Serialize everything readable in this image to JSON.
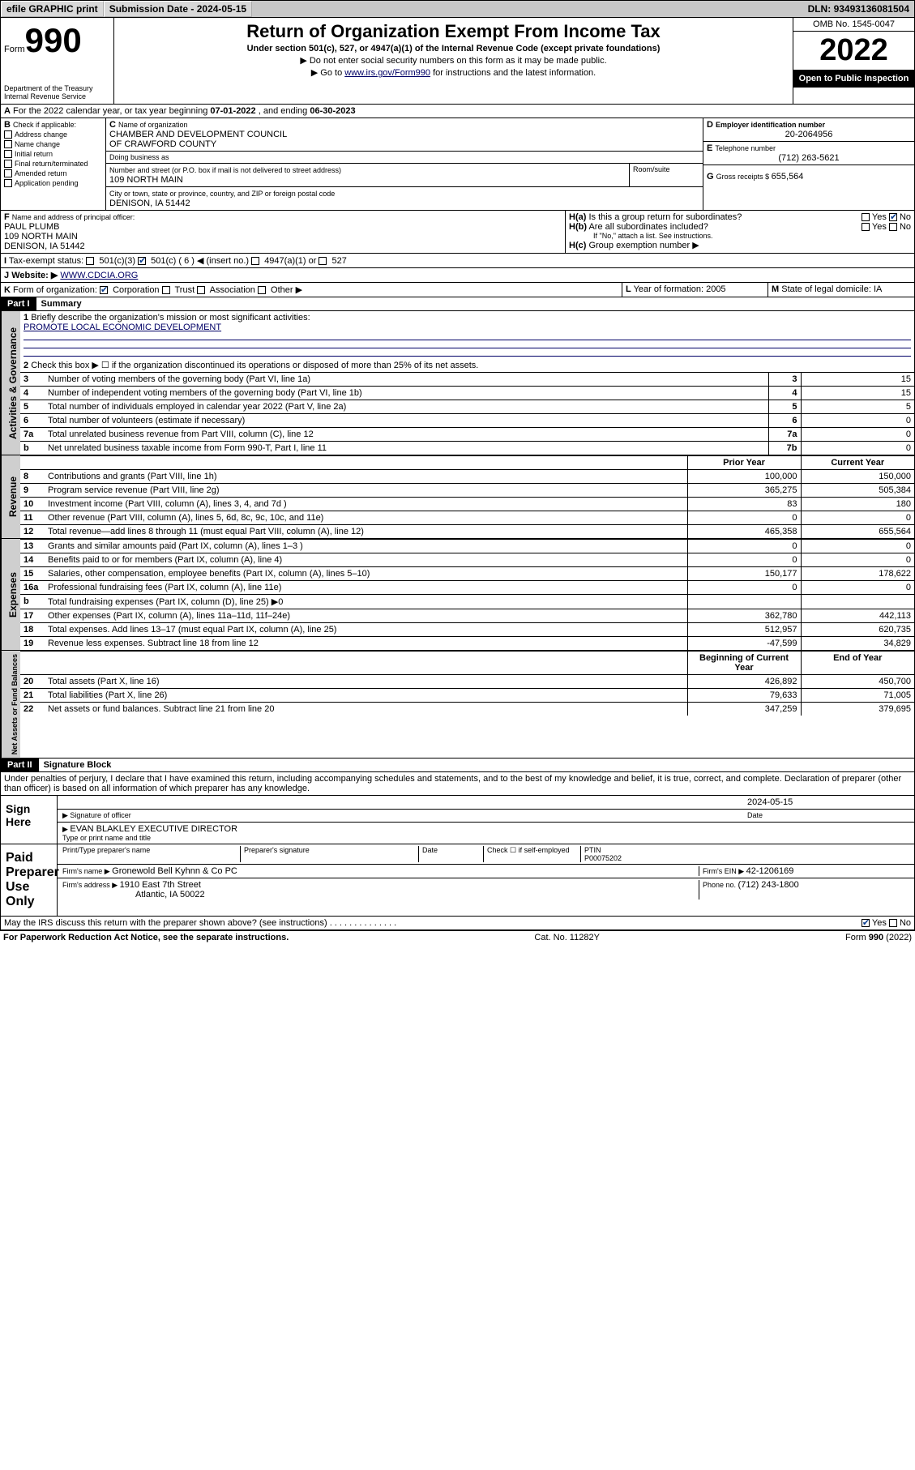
{
  "topbar": {
    "efile": "efile GRAPHIC print",
    "submission_label": "Submission Date - ",
    "submission_date": "2024-05-15",
    "dln_label": "DLN: ",
    "dln": "93493136081504"
  },
  "header": {
    "form_label": "Form",
    "form_no": "990",
    "dept": "Department of the Treasury\nInternal Revenue Service",
    "title": "Return of Organization Exempt From Income Tax",
    "subtitle": "Under section 501(c), 527, or 4947(a)(1) of the Internal Revenue Code (except private foundations)",
    "note1": "▶ Do not enter social security numbers on this form as it may be made public.",
    "note2_pre": "▶ Go to ",
    "note2_link": "www.irs.gov/Form990",
    "note2_post": " for instructions and the latest information.",
    "omb": "OMB No. 1545-0047",
    "year": "2022",
    "open": "Open to Public Inspection"
  },
  "A": {
    "text": "For the 2022 calendar year, or tax year beginning ",
    "begin": "07-01-2022",
    "mid": " , and ending ",
    "end": "06-30-2023"
  },
  "B": {
    "label": "Check if applicable:",
    "items": [
      "Address change",
      "Name change",
      "Initial return",
      "Final return/terminated",
      "Amended return",
      "Application pending"
    ],
    "checked": [
      false,
      false,
      false,
      false,
      false,
      false
    ]
  },
  "C": {
    "name_label": "Name of organization",
    "name": "CHAMBER AND DEVELOPMENT COUNCIL\nOF CRAWFORD COUNTY",
    "dba_label": "Doing business as",
    "street_label": "Number and street (or P.O. box if mail is not delivered to street address)",
    "room_label": "Room/suite",
    "street": "109 NORTH MAIN",
    "city_label": "City or town, state or province, country, and ZIP or foreign postal code",
    "city": "DENISON, IA  51442"
  },
  "D": {
    "label": "Employer identification number",
    "value": "20-2064956"
  },
  "E": {
    "label": "Telephone number",
    "value": "(712) 263-5621"
  },
  "G": {
    "label": "Gross receipts $ ",
    "value": "655,564"
  },
  "F": {
    "label": "Name and address of principal officer:",
    "name": "PAUL PLUMB",
    "addr1": "109 NORTH MAIN",
    "addr2": "DENISON, IA  51442"
  },
  "H": {
    "a": "Is this a group return for subordinates?",
    "b": "Are all subordinates included?",
    "note": "If \"No,\" attach a list. See instructions.",
    "c": "Group exemption number ▶",
    "a_yes": false,
    "a_no": true,
    "b_yes": false,
    "b_no": false
  },
  "I": {
    "label": "Tax-exempt status:",
    "c3": false,
    "c_other": true,
    "c_num": "501(c) ( 6 ) ◀ (insert no.)",
    "t4947": "4947(a)(1) or",
    "t527": "527"
  },
  "J": {
    "label": "Website: ▶",
    "value": "WWW.CDCIA.ORG"
  },
  "K": {
    "label": "Form of organization:",
    "corp": true,
    "trust": false,
    "assoc": false,
    "other": false,
    "items": [
      "Corporation",
      "Trust",
      "Association",
      "Other ▶"
    ]
  },
  "L": {
    "label": "Year of formation: ",
    "value": "2005"
  },
  "M": {
    "label": "State of legal domicile: ",
    "value": "IA"
  },
  "partI": {
    "bar": "Part I",
    "title": "Summary"
  },
  "summary": {
    "q1": "Briefly describe the organization's mission or most significant activities:",
    "mission": "PROMOTE LOCAL ECONOMIC DEVELOPMENT",
    "q2": "Check this box ▶ ☐ if the organization discontinued its operations or disposed of more than 25% of its net assets.",
    "vlabels": {
      "gov": "Activities & Governance",
      "rev": "Revenue",
      "exp": "Expenses",
      "net": "Net Assets or Fund Balances"
    },
    "governance": [
      {
        "n": "3",
        "t": "Number of voting members of the governing body (Part VI, line 1a)",
        "k": "3",
        "v": "15"
      },
      {
        "n": "4",
        "t": "Number of independent voting members of the governing body (Part VI, line 1b)",
        "k": "4",
        "v": "15"
      },
      {
        "n": "5",
        "t": "Total number of individuals employed in calendar year 2022 (Part V, line 2a)",
        "k": "5",
        "v": "5"
      },
      {
        "n": "6",
        "t": "Total number of volunteers (estimate if necessary)",
        "k": "6",
        "v": "0"
      },
      {
        "n": "7a",
        "t": "Total unrelated business revenue from Part VIII, column (C), line 12",
        "k": "7a",
        "v": "0"
      },
      {
        "n": "b",
        "t": "Net unrelated business taxable income from Form 990-T, Part I, line 11",
        "k": "7b",
        "v": "0"
      }
    ],
    "col_prior": "Prior Year",
    "col_current": "Current Year",
    "revenue": [
      {
        "n": "8",
        "t": "Contributions and grants (Part VIII, line 1h)",
        "p": "100,000",
        "c": "150,000"
      },
      {
        "n": "9",
        "t": "Program service revenue (Part VIII, line 2g)",
        "p": "365,275",
        "c": "505,384"
      },
      {
        "n": "10",
        "t": "Investment income (Part VIII, column (A), lines 3, 4, and 7d )",
        "p": "83",
        "c": "180"
      },
      {
        "n": "11",
        "t": "Other revenue (Part VIII, column (A), lines 5, 6d, 8c, 9c, 10c, and 11e)",
        "p": "0",
        "c": "0"
      },
      {
        "n": "12",
        "t": "Total revenue—add lines 8 through 11 (must equal Part VIII, column (A), line 12)",
        "p": "465,358",
        "c": "655,564"
      }
    ],
    "expenses": [
      {
        "n": "13",
        "t": "Grants and similar amounts paid (Part IX, column (A), lines 1–3 )",
        "p": "0",
        "c": "0"
      },
      {
        "n": "14",
        "t": "Benefits paid to or for members (Part IX, column (A), line 4)",
        "p": "0",
        "c": "0"
      },
      {
        "n": "15",
        "t": "Salaries, other compensation, employee benefits (Part IX, column (A), lines 5–10)",
        "p": "150,177",
        "c": "178,622"
      },
      {
        "n": "16a",
        "t": "Professional fundraising fees (Part IX, column (A), line 11e)",
        "p": "0",
        "c": "0"
      },
      {
        "n": "b",
        "t": "Total fundraising expenses (Part IX, column (D), line 25) ▶0",
        "p": "",
        "c": ""
      },
      {
        "n": "17",
        "t": "Other expenses (Part IX, column (A), lines 11a–11d, 11f–24e)",
        "p": "362,780",
        "c": "442,113"
      },
      {
        "n": "18",
        "t": "Total expenses. Add lines 13–17 (must equal Part IX, column (A), line 25)",
        "p": "512,957",
        "c": "620,735"
      },
      {
        "n": "19",
        "t": "Revenue less expenses. Subtract line 18 from line 12",
        "p": "-47,599",
        "c": "34,829"
      }
    ],
    "col_boy": "Beginning of Current Year",
    "col_eoy": "End of Year",
    "netassets": [
      {
        "n": "20",
        "t": "Total assets (Part X, line 16)",
        "p": "426,892",
        "c": "450,700"
      },
      {
        "n": "21",
        "t": "Total liabilities (Part X, line 26)",
        "p": "79,633",
        "c": "71,005"
      },
      {
        "n": "22",
        "t": "Net assets or fund balances. Subtract line 21 from line 20",
        "p": "347,259",
        "c": "379,695"
      }
    ]
  },
  "partII": {
    "bar": "Part II",
    "title": "Signature Block"
  },
  "sig": {
    "perjury": "Under penalties of perjury, I declare that I have examined this return, including accompanying schedules and statements, and to the best of my knowledge and belief, it is true, correct, and complete. Declaration of preparer (other than officer) is based on all information of which preparer has any knowledge.",
    "signhere": "Sign Here",
    "sig_officer": "Signature of officer",
    "date_label": "Date",
    "date": "2024-05-15",
    "name_title_label": "Type or print name and title",
    "name_title": "EVAN BLAKLEY  EXECUTIVE DIRECTOR",
    "paid": "Paid Preparer Use Only",
    "col_print": "Print/Type preparer's name",
    "col_sig": "Preparer's signature",
    "col_date": "Date",
    "check_self": "Check ☐ if self-employed",
    "ptin_label": "PTIN",
    "ptin": "P00075202",
    "firm_name_label": "Firm's name   ▶ ",
    "firm_name": "Gronewold Bell Kyhnn & Co PC",
    "firm_ein_label": "Firm's EIN ▶ ",
    "firm_ein": "42-1206169",
    "firm_addr_label": "Firm's address ▶ ",
    "firm_addr1": "1910 East 7th Street",
    "firm_addr2": "Atlantic, IA  50022",
    "phone_label": "Phone no. ",
    "phone": "(712) 243-1800",
    "discuss": "May the IRS discuss this return with the preparer shown above? (see instructions)",
    "discuss_yes": true,
    "discuss_no": false
  },
  "footer": {
    "pra": "For Paperwork Reduction Act Notice, see the separate instructions.",
    "cat": "Cat. No. 11282Y",
    "form": "Form 990 (2022)"
  },
  "yes": "Yes",
  "no": "No"
}
